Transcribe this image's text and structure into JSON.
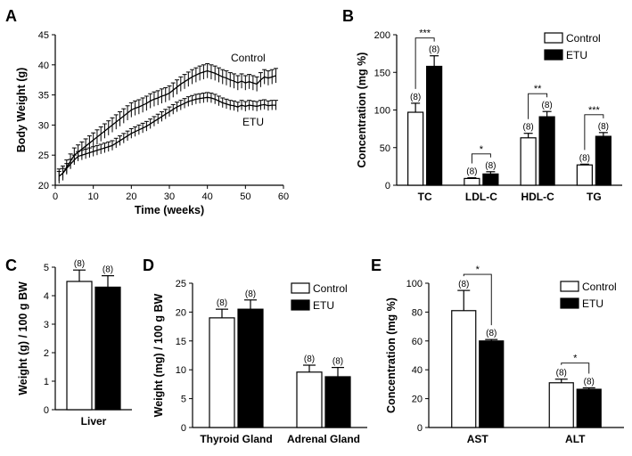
{
  "colors": {
    "control": "#ffffff",
    "etu": "#000000",
    "stroke": "#000000"
  },
  "chart_data": [
    {
      "id": "A",
      "panel": "A",
      "type": "line",
      "xlabel": "Time (weeks)",
      "ylabel": "Body Weight (g)",
      "xlim": [
        0,
        60
      ],
      "ylim": [
        20,
        45
      ],
      "xticks": [
        "0",
        "10",
        "20",
        "30",
        "40",
        "50",
        "60"
      ],
      "yticks": [
        "20",
        "25",
        "30",
        "35",
        "40",
        "45"
      ],
      "series": [
        {
          "name": "Control",
          "label": "Control",
          "x": [
            1,
            2,
            3,
            4,
            5,
            6,
            7,
            8,
            9,
            10,
            11,
            12,
            13,
            14,
            15,
            16,
            17,
            18,
            19,
            20,
            21,
            22,
            23,
            24,
            25,
            26,
            27,
            28,
            29,
            30,
            31,
            32,
            33,
            34,
            35,
            36,
            37,
            38,
            39,
            40,
            41,
            42,
            43,
            44,
            45,
            46,
            47,
            48,
            49,
            50,
            51,
            52,
            53,
            54,
            55,
            56,
            57,
            58
          ],
          "y": [
            21.5,
            22.0,
            23.0,
            24.0,
            25.0,
            25.5,
            26.0,
            26.5,
            27.0,
            27.5,
            28.0,
            28.5,
            29.0,
            29.5,
            30.0,
            30.5,
            31.0,
            31.5,
            32.0,
            32.5,
            32.8,
            33.0,
            33.3,
            33.6,
            34.0,
            34.3,
            34.5,
            34.8,
            35.0,
            35.3,
            35.8,
            36.3,
            36.8,
            37.2,
            37.6,
            38.0,
            38.3,
            38.6,
            38.8,
            39.0,
            38.8,
            38.6,
            38.3,
            38.0,
            37.8,
            37.5,
            37.3,
            37.0,
            37.3,
            37.0,
            37.2,
            37.0,
            36.8,
            37.5,
            38.0,
            37.8,
            38.0,
            38.2
          ],
          "err": 1.2
        },
        {
          "name": "ETU",
          "label": "ETU",
          "x": [
            1,
            2,
            3,
            4,
            5,
            6,
            7,
            8,
            9,
            10,
            11,
            12,
            13,
            14,
            15,
            16,
            17,
            18,
            19,
            20,
            21,
            22,
            23,
            24,
            25,
            26,
            27,
            28,
            29,
            30,
            31,
            32,
            33,
            34,
            35,
            36,
            37,
            38,
            39,
            40,
            41,
            42,
            43,
            44,
            45,
            46,
            47,
            48,
            49,
            50,
            51,
            52,
            53,
            54,
            55,
            56,
            57,
            58
          ],
          "y": [
            21.5,
            22.0,
            22.8,
            23.5,
            24.2,
            24.8,
            25.0,
            25.2,
            25.4,
            25.6,
            25.8,
            26.0,
            26.2,
            26.4,
            26.6,
            27.0,
            27.4,
            27.8,
            28.2,
            28.6,
            28.9,
            29.2,
            29.5,
            29.8,
            30.2,
            30.6,
            31.0,
            31.4,
            31.8,
            32.2,
            32.6,
            33.0,
            33.3,
            33.6,
            33.9,
            34.1,
            34.3,
            34.4,
            34.5,
            34.6,
            34.5,
            34.3,
            34.0,
            33.7,
            33.5,
            33.3,
            33.2,
            33.0,
            33.3,
            33.1,
            33.3,
            33.2,
            33.1,
            33.3,
            33.4,
            33.2,
            33.3,
            33.3
          ],
          "err": 0.8
        }
      ]
    },
    {
      "id": "B",
      "panel": "B",
      "type": "bar",
      "ylabel": "Concentration (mg %)",
      "ylim": [
        0,
        200
      ],
      "yticks": [
        "0",
        "50",
        "100",
        "150",
        "200"
      ],
      "categories": [
        "TC",
        "LDL-C",
        "HDL-C",
        "TG"
      ],
      "series": [
        {
          "name": "Control",
          "values": [
            97,
            9,
            63,
            27
          ],
          "err": [
            12,
            1,
            6,
            1
          ],
          "n": [
            "(8)",
            "(8)",
            "(8)",
            "(8)"
          ]
        },
        {
          "name": "ETU",
          "values": [
            158,
            15,
            91,
            65
          ],
          "err": [
            14,
            3,
            7,
            5
          ],
          "n": [
            "(8)",
            "(8)",
            "(8)",
            "(8)"
          ]
        }
      ],
      "significance": [
        "***",
        "*",
        "**",
        "***"
      ],
      "legend": [
        "Control",
        "ETU"
      ]
    },
    {
      "id": "C",
      "panel": "C",
      "type": "bar",
      "ylabel": "Weight (g) / 100 g BW",
      "ylim": [
        0,
        5
      ],
      "yticks": [
        "0",
        "1",
        "2",
        "3",
        "4",
        "5"
      ],
      "categories": [
        "Liver"
      ],
      "series": [
        {
          "name": "Control",
          "values": [
            4.5
          ],
          "err": [
            0.4
          ],
          "n": [
            "(8)"
          ]
        },
        {
          "name": "ETU",
          "values": [
            4.3
          ],
          "err": [
            0.4
          ],
          "n": [
            "(8)"
          ]
        }
      ]
    },
    {
      "id": "D",
      "panel": "D",
      "type": "bar",
      "ylabel": "Weight (mg) / 100 g BW",
      "ylim": [
        0,
        25
      ],
      "yticks": [
        "0",
        "5",
        "10",
        "15",
        "20",
        "25"
      ],
      "categories": [
        "Thyroid Gland",
        "Adrenal Gland"
      ],
      "series": [
        {
          "name": "Control",
          "values": [
            19,
            9.6
          ],
          "err": [
            1.5,
            1.2
          ],
          "n": [
            "(8)",
            "(8)"
          ]
        },
        {
          "name": "ETU",
          "values": [
            20.5,
            8.8
          ],
          "err": [
            1.6,
            1.6
          ],
          "n": [
            "(8)",
            "(8)"
          ]
        }
      ],
      "legend": [
        "Control",
        "ETU"
      ]
    },
    {
      "id": "E",
      "panel": "E",
      "type": "bar",
      "ylabel": "Concentration (mg %)",
      "ylim": [
        0,
        100
      ],
      "yticks": [
        "0",
        "20",
        "40",
        "60",
        "80",
        "100"
      ],
      "categories": [
        "AST",
        "ALT"
      ],
      "series": [
        {
          "name": "Control",
          "values": [
            81,
            31
          ],
          "err": [
            14,
            2.5
          ],
          "n": [
            "(8)",
            "(8)"
          ]
        },
        {
          "name": "ETU",
          "values": [
            60,
            26.5
          ],
          "err": [
            1,
            1
          ],
          "n": [
            "(8)",
            "(8)"
          ]
        }
      ],
      "significance": [
        "*",
        "*"
      ],
      "legend": [
        "Control",
        "ETU"
      ]
    }
  ]
}
